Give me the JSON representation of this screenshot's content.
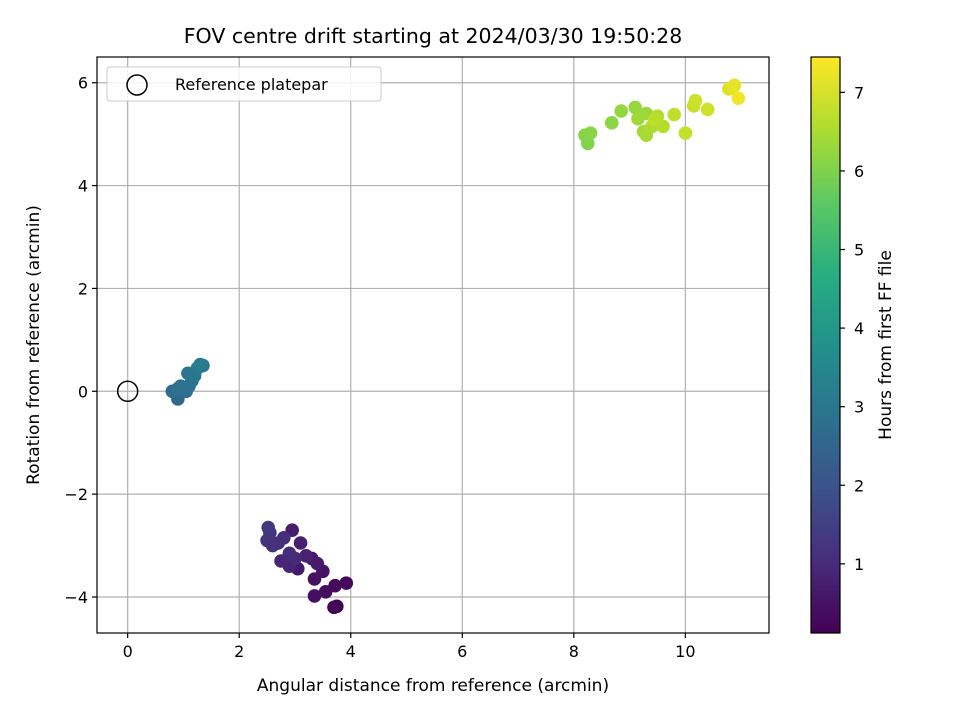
{
  "chart_data": {
    "type": "scatter",
    "title": "FOV centre drift starting at 2024/03/30 19:50:28",
    "xlabel": "Angular distance from reference (arcmin)",
    "ylabel": "Rotation from reference (arcmin)",
    "colorbar_label": "Hours from first FF file",
    "xlim": [
      -0.55,
      11.5
    ],
    "ylim": [
      -4.7,
      6.5
    ],
    "x_ticks": [
      0,
      2,
      4,
      6,
      8,
      10
    ],
    "y_ticks": [
      -4,
      -2,
      0,
      2,
      4,
      6
    ],
    "x_tick_labels": [
      "0",
      "2",
      "4",
      "6",
      "8",
      "10"
    ],
    "y_tick_labels": [
      "−4",
      "−2",
      "0",
      "2",
      "4",
      "6"
    ],
    "colorbar_range": [
      0.12,
      7.45
    ],
    "colorbar_ticks": [
      1,
      2,
      3,
      4,
      5,
      6,
      7
    ],
    "colorbar_tick_labels": [
      "1",
      "2",
      "3",
      "4",
      "5",
      "6",
      "7"
    ],
    "colormap": "viridis",
    "grid": true,
    "legend": {
      "placement": "top-left",
      "entries": [
        "Reference platepar"
      ]
    },
    "reference_point": {
      "x": 0,
      "y": 0
    },
    "points": [
      {
        "x": 3.75,
        "y": -4.18,
        "h": 0.15
      },
      {
        "x": 3.7,
        "y": -4.2,
        "h": 0.2
      },
      {
        "x": 3.92,
        "y": -3.73,
        "h": 0.25
      },
      {
        "x": 3.72,
        "y": -3.78,
        "h": 0.3
      },
      {
        "x": 3.55,
        "y": -3.9,
        "h": 0.35
      },
      {
        "x": 3.35,
        "y": -3.98,
        "h": 0.4
      },
      {
        "x": 3.35,
        "y": -3.65,
        "h": 0.45
      },
      {
        "x": 3.5,
        "y": -3.5,
        "h": 0.5
      },
      {
        "x": 3.3,
        "y": -3.25,
        "h": 0.55
      },
      {
        "x": 3.05,
        "y": -3.45,
        "h": 0.6
      },
      {
        "x": 3.4,
        "y": -3.35,
        "h": 0.65
      },
      {
        "x": 2.95,
        "y": -2.7,
        "h": 0.7
      },
      {
        "x": 3.1,
        "y": -2.95,
        "h": 0.75
      },
      {
        "x": 3.2,
        "y": -3.2,
        "h": 0.8
      },
      {
        "x": 2.9,
        "y": -3.4,
        "h": 0.85
      },
      {
        "x": 2.75,
        "y": -3.3,
        "h": 0.9
      },
      {
        "x": 3.0,
        "y": -3.25,
        "h": 0.95
      },
      {
        "x": 2.9,
        "y": -3.15,
        "h": 1.0
      },
      {
        "x": 2.8,
        "y": -2.85,
        "h": 1.05
      },
      {
        "x": 2.7,
        "y": -2.95,
        "h": 1.1
      },
      {
        "x": 2.6,
        "y": -3.0,
        "h": 1.15
      },
      {
        "x": 2.5,
        "y": -2.9,
        "h": 1.2
      },
      {
        "x": 2.55,
        "y": -2.75,
        "h": 1.25
      },
      {
        "x": 2.52,
        "y": -2.65,
        "h": 1.3
      },
      {
        "x": 0.9,
        "y": -0.15,
        "h": 2.6
      },
      {
        "x": 0.8,
        "y": 0.0,
        "h": 2.65
      },
      {
        "x": 0.95,
        "y": 0.1,
        "h": 2.7
      },
      {
        "x": 1.05,
        "y": 0.0,
        "h": 2.75
      },
      {
        "x": 0.9,
        "y": 0.05,
        "h": 2.8
      },
      {
        "x": 1.1,
        "y": 0.1,
        "h": 2.85
      },
      {
        "x": 1.15,
        "y": 0.2,
        "h": 2.9
      },
      {
        "x": 1.08,
        "y": 0.35,
        "h": 2.95
      },
      {
        "x": 1.2,
        "y": 0.3,
        "h": 3.0
      },
      {
        "x": 1.25,
        "y": 0.45,
        "h": 3.05
      },
      {
        "x": 1.35,
        "y": 0.5,
        "h": 3.1
      },
      {
        "x": 1.3,
        "y": 0.52,
        "h": 3.15
      },
      {
        "x": 8.25,
        "y": 4.82,
        "h": 6.05
      },
      {
        "x": 8.2,
        "y": 4.98,
        "h": 6.1
      },
      {
        "x": 8.3,
        "y": 5.02,
        "h": 6.15
      },
      {
        "x": 8.68,
        "y": 5.22,
        "h": 6.2
      },
      {
        "x": 8.85,
        "y": 5.45,
        "h": 6.25
      },
      {
        "x": 9.1,
        "y": 5.52,
        "h": 6.3
      },
      {
        "x": 9.3,
        "y": 5.4,
        "h": 6.35
      },
      {
        "x": 9.15,
        "y": 5.3,
        "h": 6.4
      },
      {
        "x": 9.25,
        "y": 5.05,
        "h": 6.45
      },
      {
        "x": 9.3,
        "y": 4.98,
        "h": 6.5
      },
      {
        "x": 9.4,
        "y": 5.15,
        "h": 6.55
      },
      {
        "x": 9.5,
        "y": 5.35,
        "h": 6.6
      },
      {
        "x": 9.6,
        "y": 5.15,
        "h": 6.65
      },
      {
        "x": 9.45,
        "y": 5.28,
        "h": 6.7
      },
      {
        "x": 9.8,
        "y": 5.38,
        "h": 6.75
      },
      {
        "x": 10.0,
        "y": 5.02,
        "h": 6.8
      },
      {
        "x": 10.15,
        "y": 5.55,
        "h": 6.85
      },
      {
        "x": 10.18,
        "y": 5.65,
        "h": 6.9
      },
      {
        "x": 10.4,
        "y": 5.48,
        "h": 6.95
      },
      {
        "x": 10.78,
        "y": 5.88,
        "h": 7.1
      },
      {
        "x": 10.88,
        "y": 5.95,
        "h": 7.2
      },
      {
        "x": 10.95,
        "y": 5.7,
        "h": 7.3
      }
    ]
  }
}
